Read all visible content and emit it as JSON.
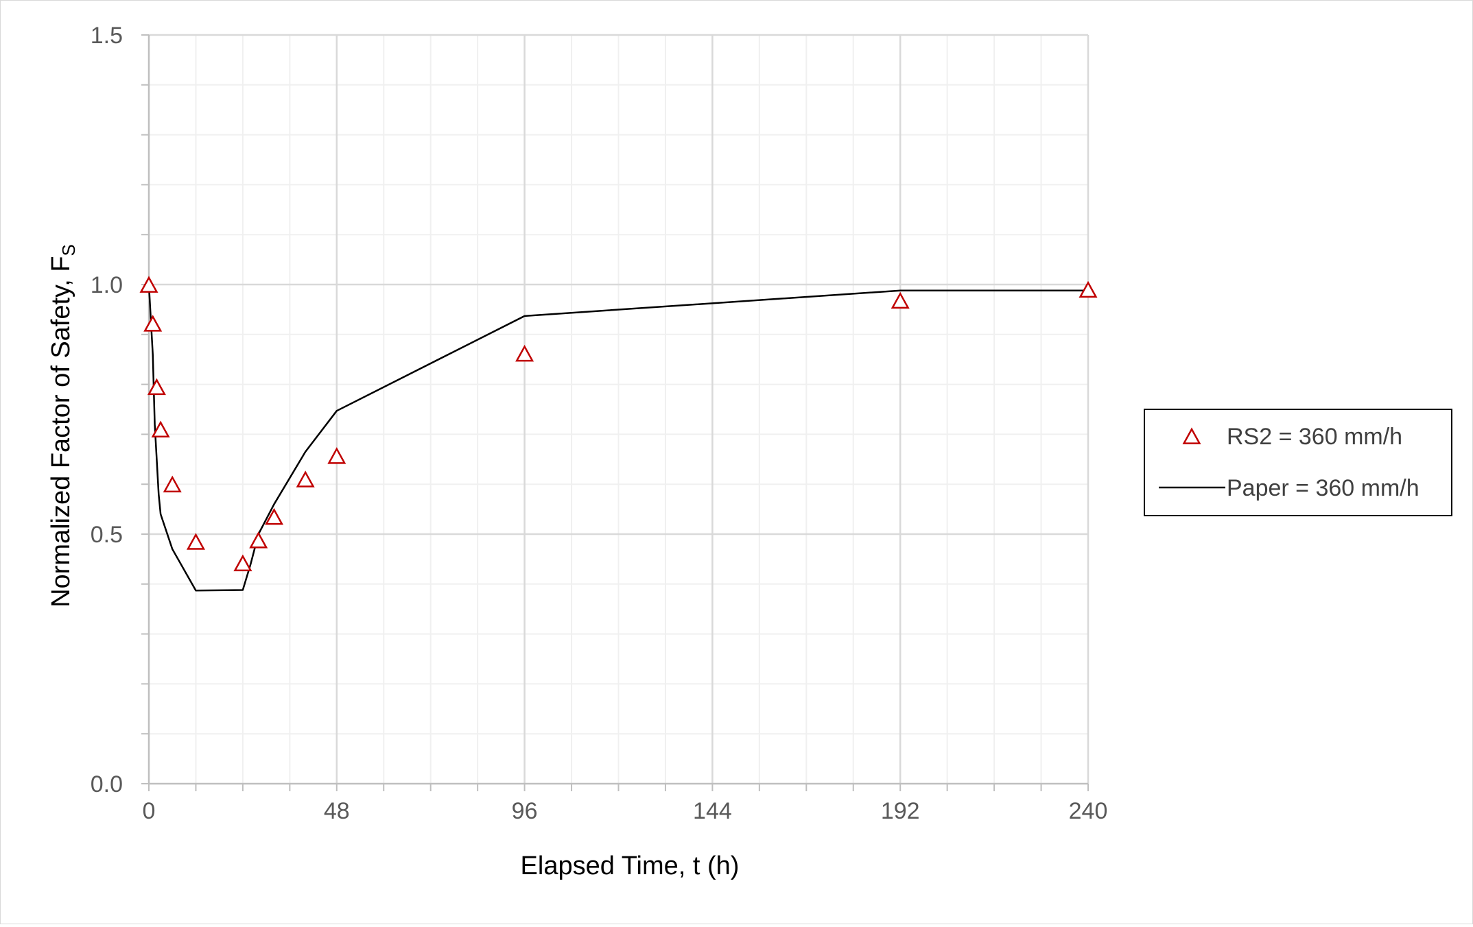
{
  "chart_data": {
    "type": "scatter",
    "title": "",
    "xlabel": "Elapsed Time, t (h)",
    "ylabel": "Normalized Factor of Safety, F",
    "ylabel_sub": "S",
    "xlim": [
      0,
      240
    ],
    "ylim": [
      0,
      1.5
    ],
    "x_ticks": [
      "0",
      "48",
      "96",
      "144",
      "192",
      "240"
    ],
    "x_tick_values": [
      0,
      48,
      96,
      144,
      192,
      240
    ],
    "y_ticks": [
      "0.0",
      "0.5",
      "1.0",
      "1.5"
    ],
    "y_tick_values": [
      0,
      0.5,
      1.0,
      1.5
    ],
    "x_minor_step": 12,
    "y_minor_step": 0.1,
    "grid": true,
    "legend_position": "right",
    "series": [
      {
        "name": "RS2 = 360 mm/h",
        "kind": "markers",
        "marker": "triangle-open",
        "color": "#c00000",
        "x": [
          0,
          1,
          2,
          3,
          6,
          12,
          24,
          28,
          32,
          40,
          48,
          96,
          192,
          240
        ],
        "y": [
          1.0,
          0.922,
          0.795,
          0.71,
          0.6,
          0.485,
          0.442,
          0.488,
          0.535,
          0.61,
          0.657,
          0.862,
          0.968,
          0.99
        ]
      },
      {
        "name": "Paper = 360 mm/h",
        "kind": "line",
        "color": "#000000",
        "x": [
          0,
          1,
          1.5,
          2,
          2.5,
          3,
          6,
          12,
          24,
          26,
          28,
          32,
          40,
          48,
          96,
          192,
          240
        ],
        "y": [
          1.0,
          0.86,
          0.72,
          0.65,
          0.58,
          0.54,
          0.47,
          0.387,
          0.388,
          0.44,
          0.5,
          0.56,
          0.665,
          0.747,
          0.937,
          0.988,
          0.988
        ]
      }
    ]
  }
}
